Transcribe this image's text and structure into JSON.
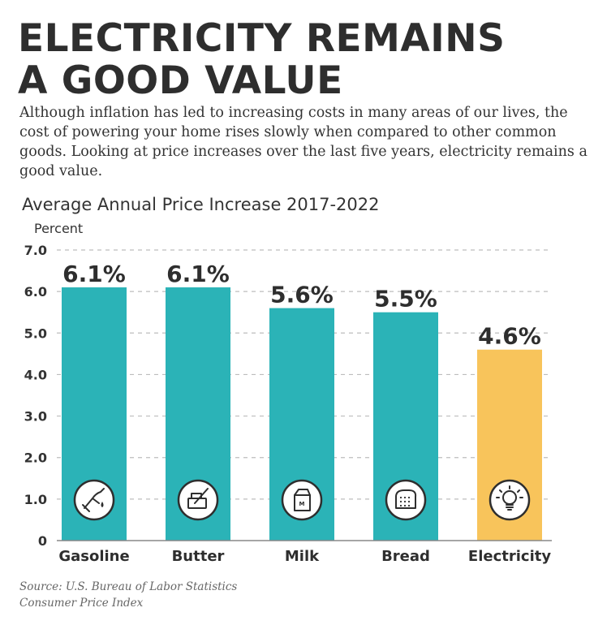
{
  "headline": {
    "line1": "ELECTRICITY REMAINS",
    "line2": "A GOOD VALUE"
  },
  "intro": "Although inflation has led to increasing costs in many areas of our lives, the cost of powering your home rises slowly when compared to other common goods. Looking at price increases over the last five years, electricity remains a good value.",
  "source": {
    "line1": "Source: U.S. Bureau of Labor Statistics",
    "line2": "Consumer Price Index"
  },
  "colors": {
    "teal": "#2BB3B7",
    "gold": "#F8C45B",
    "grid": "#bdbdbd",
    "text": "#333333"
  },
  "chart_data": {
    "type": "bar",
    "title": "Average Annual Price Increase 2017-2022",
    "ylabel": "Percent",
    "xlabel": "",
    "ylim": [
      0,
      7
    ],
    "yticks": [
      "0",
      "1.0",
      "2.0",
      "3.0",
      "4.0",
      "5.0",
      "6.0",
      "7.0"
    ],
    "grid": true,
    "categories": [
      "Gasoline",
      "Butter",
      "Milk",
      "Bread",
      "Electricity"
    ],
    "values": [
      6.1,
      6.1,
      5.6,
      5.5,
      4.6
    ],
    "value_labels": [
      "6.1%",
      "6.1%",
      "5.6%",
      "5.5%",
      "4.6%"
    ],
    "bar_colors": [
      "#2BB3B7",
      "#2BB3B7",
      "#2BB3B7",
      "#2BB3B7",
      "#F8C45B"
    ],
    "icons": [
      "gas-pump-icon",
      "butter-icon",
      "milk-carton-icon",
      "bread-icon",
      "light-bulb-icon"
    ]
  }
}
